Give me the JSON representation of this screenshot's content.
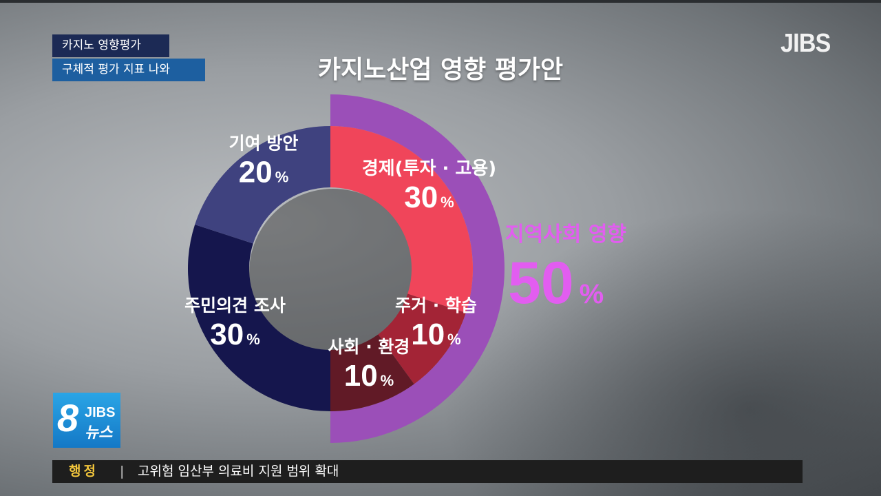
{
  "tags": {
    "line1": "카지노 영향평가",
    "line2": "구체적 평가 지표 나와"
  },
  "logo": "JIBS",
  "news_logo": {
    "number": "8",
    "brand": "JIBS",
    "sub": "뉴스"
  },
  "ticker": {
    "category": "행정",
    "separator": "|",
    "headline": "고위험 임산부 의료비 지원 범위 확대"
  },
  "chart_data": {
    "type": "pie",
    "title": "카지노산업 영향 평가안",
    "unit": "%",
    "slices": [
      {
        "label": "경제(투자 · 고용)",
        "value": 30,
        "color": "#f0455a"
      },
      {
        "label": "주거 · 학습",
        "value": 10,
        "color": "#a32436"
      },
      {
        "label": "사회 · 환경",
        "value": 10,
        "color": "#611a26"
      },
      {
        "label": "주민의견 조사",
        "value": 30,
        "color": "#15164d"
      },
      {
        "label": "기여 방안",
        "value": 20,
        "color": "#3f427f"
      }
    ],
    "group": {
      "label": "지역사회 영향",
      "value": 50,
      "color": "#9b4fb8",
      "label_color": "#e25df0"
    }
  }
}
